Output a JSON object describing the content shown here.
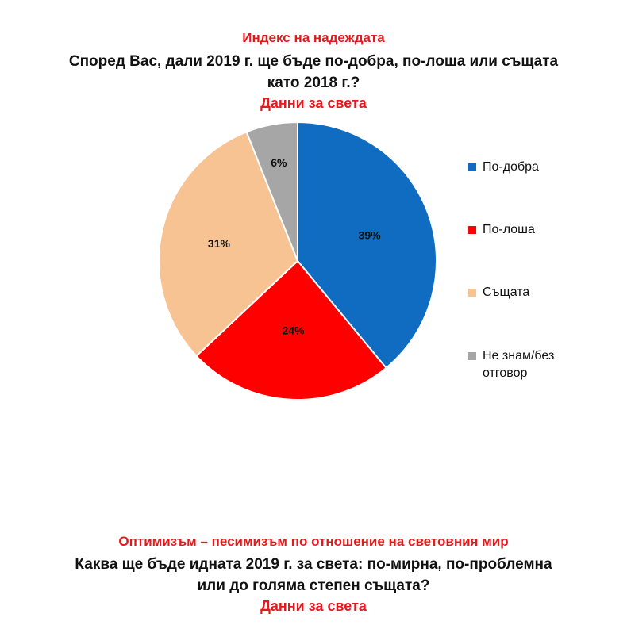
{
  "top": {
    "title": "Индекс на надеждата",
    "question_line1": "Според Вас, дали 2019 г. ще бъде по-добра, по-лоша или същата",
    "question_line2": "като 2018 г.?",
    "subtitle": "Данни за света"
  },
  "bottom": {
    "title": "Оптимизъм – песимизъм по отношение на световния мир",
    "question_line1": "Каква ще бъде идната 2019 г. за света: по-мирна, по-проблемна",
    "question_line2": "или до голяма степен същата?",
    "subtitle": "Данни за света"
  },
  "chart_data": {
    "type": "pie",
    "title": "Индекс на надеждата",
    "categories": [
      "По-добра",
      "По-лоша",
      "Същата",
      "Не знам/без отговор"
    ],
    "values": [
      39,
      24,
      31,
      6
    ],
    "labels": [
      "39%",
      "24%",
      "31%",
      "6%"
    ],
    "colors": [
      "#0f6cc0",
      "#ff0000",
      "#f8c393",
      "#a6a6a6"
    ],
    "legend_position": "right"
  }
}
